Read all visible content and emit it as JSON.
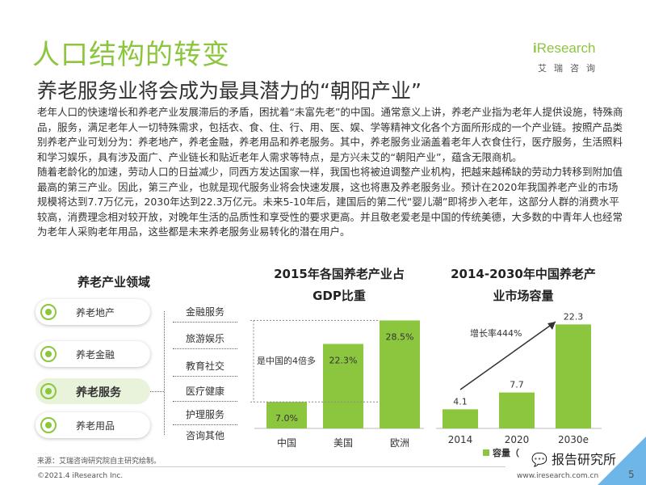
{
  "header": {
    "title": "人口结构的转变",
    "subtitle": "养老服务业将会成为最具潜力的“朝阳产业”"
  },
  "logo": {
    "brand_i": "i",
    "brand_rest": "Research",
    "cn": "艾瑞咨询"
  },
  "body": {
    "para1": "老年人口的快速增长和养老产业发展滞后的矛盾，困扰着“未富先老”的中国。通常意义上讲，养老产业指为老年人提供设施，特殊商品，服务，满足老年人一切特殊需求，包括衣、食、住、行、用、医、娱、学等精神文化各个方面所形成的一个产业链。按照产品类别养老产业可划分为：养老地产，养老金融，养老用品和养老服务。其中，养老服务业涵盖着老年人衣食住行，医疗服务，生活照料和学习娱乐，具有涉及面广、产业链长和贴近老年人需求等特点，是方兴未艾的“朝阳产业”，蕴含无限商机。",
    "para2": "随着老龄化的加速，劳动人口的日益减少，同西方发达国家一样，我国也将被迫调整产业机构，把越来越稀缺的劳动力转移到附加值最高的第三产业。因此，第三产业，也就是现代服务业将会快速发展，这也将惠及养老服务业。预计在2020年我国养老产业的市场规模将达到7.7万亿元，2030年达到22.3万亿元。未来5-10年后，建国后的第二代“婴儿潮”即将步入老年，这部分人群的消费水平较高，消费理念相对较开放，对晚年生活的品质性和享受性的要求更高。并且敬老爱老是中国的传统美德，大多数的中青年人也经常为老年人采购老年用品，这些都是未来养老服务业易转化的潜在用户。"
  },
  "diagram": {
    "title": "养老产业领域",
    "categories": [
      "养老地产",
      "养老金融",
      "养老服务",
      "养老用品"
    ],
    "services": [
      "金融服务",
      "旅游娱乐",
      "教育社交",
      "医疗健康",
      "护理服务",
      "咨询其他"
    ]
  },
  "chart_data": [
    {
      "type": "bar",
      "title": "2015年各国养老产业占GDP比重",
      "title_line1": "2015年各国养老产业占",
      "title_line2": "GDP比重",
      "categories": [
        "中国",
        "美国",
        "欧洲"
      ],
      "values": [
        7.0,
        22.3,
        28.5
      ],
      "value_labels": [
        "7.0%",
        "22.3%",
        "28.5%"
      ],
      "annotation": "是中国的4倍多",
      "ylim": [
        0,
        32
      ],
      "color": "#8cc63f"
    },
    {
      "type": "bar",
      "title": "2014-2030年中国养老产业市场容量",
      "title_line1": "2014-2030年中国养老产",
      "title_line2": "业市场容量",
      "categories": [
        "2014",
        "2020",
        "2030e"
      ],
      "values": [
        4.1,
        7.7,
        22.3
      ],
      "value_labels": [
        "4.1",
        "7.7",
        "22.3"
      ],
      "annotation": "增长率444%",
      "legend": "容量（",
      "ylim": [
        0,
        26
      ],
      "color": "#8cc63f"
    }
  ],
  "footer": {
    "source": "来源：艾瑞咨询研究院自主研究绘制。",
    "copyright": "©2021.4 iResearch Inc.",
    "url": "www.iresearch.com.cn",
    "wechat": "报告研究所",
    "page": "5"
  }
}
